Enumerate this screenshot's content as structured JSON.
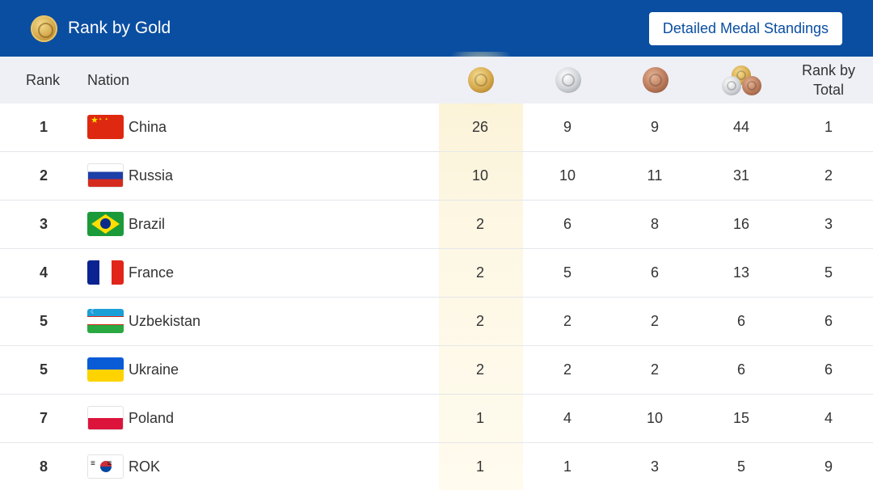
{
  "header": {
    "title": "Rank by Gold",
    "button_label": "Detailed Medal Standings"
  },
  "columns": {
    "rank": "Rank",
    "nation": "Nation",
    "gold_icon": "gold-medal-icon",
    "silver_icon": "silver-medal-icon",
    "bronze_icon": "bronze-medal-icon",
    "total_icon": "all-medals-icon",
    "rank_by_total_line1": "Rank by",
    "rank_by_total_line2": "Total"
  },
  "rows": [
    {
      "rank": "1",
      "nation": "China",
      "flag": "china-flag-icon",
      "gold": "26",
      "silver": "9",
      "bronze": "9",
      "total": "44",
      "rank_total": "1"
    },
    {
      "rank": "2",
      "nation": "Russia",
      "flag": "russia-flag-icon",
      "gold": "10",
      "silver": "10",
      "bronze": "11",
      "total": "31",
      "rank_total": "2"
    },
    {
      "rank": "3",
      "nation": "Brazil",
      "flag": "brazil-flag-icon",
      "gold": "2",
      "silver": "6",
      "bronze": "8",
      "total": "16",
      "rank_total": "3"
    },
    {
      "rank": "4",
      "nation": "France",
      "flag": "france-flag-icon",
      "gold": "2",
      "silver": "5",
      "bronze": "6",
      "total": "13",
      "rank_total": "5"
    },
    {
      "rank": "5",
      "nation": "Uzbekistan",
      "flag": "uzbekistan-flag-icon",
      "gold": "2",
      "silver": "2",
      "bronze": "2",
      "total": "6",
      "rank_total": "6"
    },
    {
      "rank": "5",
      "nation": "Ukraine",
      "flag": "ukraine-flag-icon",
      "gold": "2",
      "silver": "2",
      "bronze": "2",
      "total": "6",
      "rank_total": "6"
    },
    {
      "rank": "7",
      "nation": "Poland",
      "flag": "poland-flag-icon",
      "gold": "1",
      "silver": "4",
      "bronze": "10",
      "total": "15",
      "rank_total": "4"
    },
    {
      "rank": "8",
      "nation": "ROK",
      "flag": "korea-flag-icon",
      "gold": "1",
      "silver": "1",
      "bronze": "3",
      "total": "5",
      "rank_total": "9"
    }
  ],
  "colors": {
    "brand_blue": "#0a4ea1",
    "header_row_bg": "#eef0f5",
    "gold_highlight": "#fbf2d4"
  }
}
